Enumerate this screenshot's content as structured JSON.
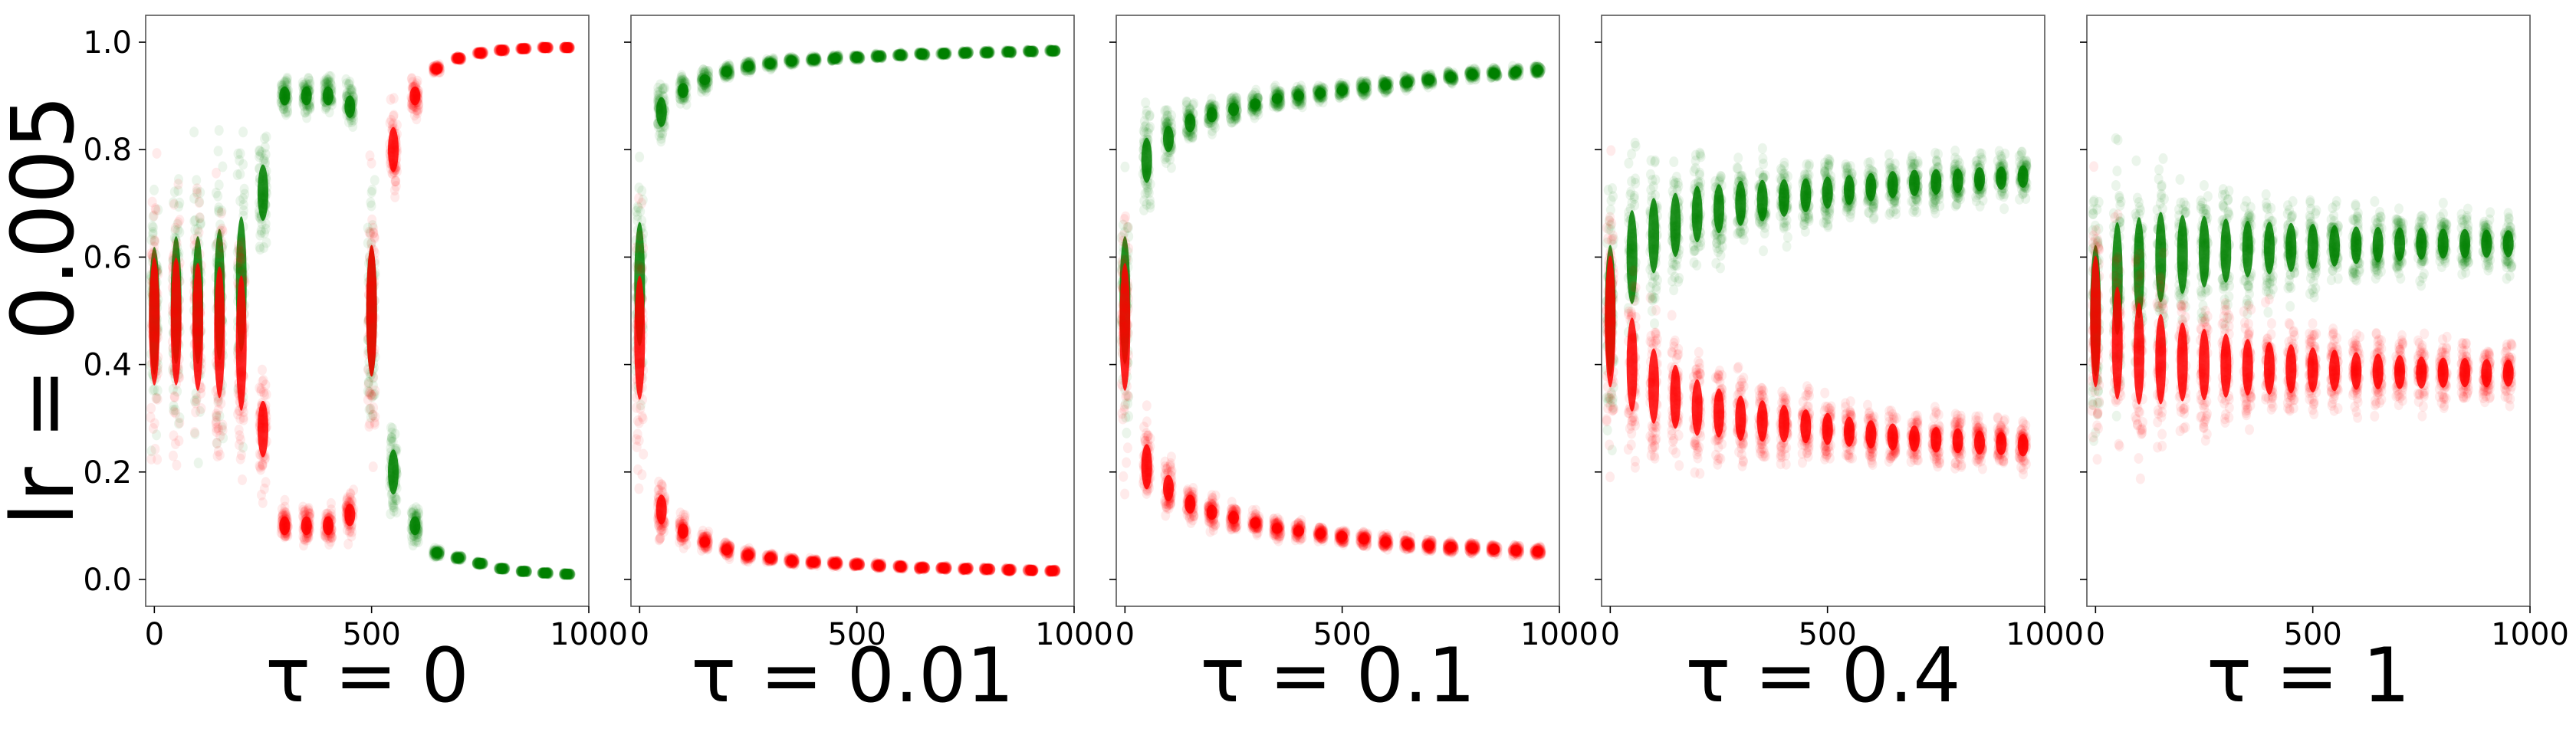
{
  "figure": {
    "ylabel": "lr = 0.005",
    "colors": {
      "high_mode": "#008000",
      "low_mode": "#ff0000"
    },
    "point_alpha": 0.08
  },
  "chart_data": [
    {
      "type": "scatter",
      "title": "",
      "xlabel": "τ = 0",
      "xlim": [
        -20,
        1000
      ],
      "ylim": [
        -0.05,
        1.05
      ],
      "xticks": [
        "0",
        "500",
        "1000"
      ],
      "yticks": [
        "0.0",
        "0.2",
        "0.4",
        "0.6",
        "0.8",
        "1.0"
      ],
      "series": [
        {
          "color": "green",
          "x": [
            0,
            50,
            100,
            150,
            200,
            250,
            300,
            350,
            400,
            450,
            500,
            550,
            600,
            650,
            700,
            750,
            800,
            850,
            900,
            950
          ],
          "y": [
            0.5,
            0.52,
            0.52,
            0.53,
            0.55,
            0.72,
            0.9,
            0.9,
            0.9,
            0.88,
            0.5,
            0.2,
            0.1,
            0.05,
            0.04,
            0.03,
            0.02,
            0.015,
            0.012,
            0.01
          ],
          "spread": [
            0.34,
            0.34,
            0.34,
            0.35,
            0.36,
            0.15,
            0.05,
            0.05,
            0.05,
            0.06,
            0.35,
            0.12,
            0.05,
            0.01,
            0.005,
            0.004,
            0.003,
            0.002,
            0.002,
            0.002
          ]
        },
        {
          "color": "red",
          "x": [
            0,
            50,
            100,
            150,
            200,
            250,
            300,
            350,
            400,
            450,
            500,
            550,
            600,
            650,
            700,
            750,
            800,
            850,
            900,
            950
          ],
          "y": [
            0.48,
            0.48,
            0.47,
            0.46,
            0.44,
            0.28,
            0.1,
            0.1,
            0.1,
            0.12,
            0.5,
            0.8,
            0.9,
            0.95,
            0.97,
            0.98,
            0.985,
            0.988,
            0.99,
            0.99
          ],
          "spread": [
            0.34,
            0.34,
            0.34,
            0.35,
            0.36,
            0.15,
            0.05,
            0.05,
            0.05,
            0.06,
            0.35,
            0.12,
            0.05,
            0.01,
            0.005,
            0.004,
            0.003,
            0.002,
            0.002,
            0.002
          ]
        }
      ]
    },
    {
      "type": "scatter",
      "title": "",
      "xlabel": "τ = 0.01",
      "xlim": [
        -20,
        1000
      ],
      "ylim": [
        -0.05,
        1.05
      ],
      "xticks": [
        "0",
        "500",
        "1000"
      ],
      "yticks": [],
      "series": [
        {
          "color": "green",
          "x": [
            0,
            50,
            100,
            150,
            200,
            250,
            300,
            350,
            400,
            450,
            500,
            550,
            600,
            650,
            700,
            750,
            800,
            850,
            900,
            950
          ],
          "y": [
            0.55,
            0.87,
            0.91,
            0.93,
            0.945,
            0.955,
            0.96,
            0.965,
            0.968,
            0.97,
            0.972,
            0.974,
            0.976,
            0.978,
            0.979,
            0.98,
            0.981,
            0.982,
            0.983,
            0.984
          ],
          "spread": [
            0.33,
            0.08,
            0.04,
            0.025,
            0.018,
            0.014,
            0.011,
            0.009,
            0.008,
            0.007,
            0.006,
            0.006,
            0.005,
            0.005,
            0.004,
            0.004,
            0.004,
            0.004,
            0.003,
            0.003
          ]
        },
        {
          "color": "red",
          "x": [
            0,
            50,
            100,
            150,
            200,
            250,
            300,
            350,
            400,
            450,
            500,
            550,
            600,
            650,
            700,
            750,
            800,
            850,
            900,
            950
          ],
          "y": [
            0.45,
            0.13,
            0.09,
            0.07,
            0.055,
            0.045,
            0.04,
            0.035,
            0.032,
            0.03,
            0.028,
            0.026,
            0.024,
            0.022,
            0.021,
            0.02,
            0.019,
            0.018,
            0.017,
            0.016
          ],
          "spread": [
            0.33,
            0.08,
            0.04,
            0.025,
            0.018,
            0.014,
            0.011,
            0.009,
            0.008,
            0.007,
            0.006,
            0.006,
            0.005,
            0.005,
            0.004,
            0.004,
            0.004,
            0.004,
            0.003,
            0.003
          ]
        }
      ]
    },
    {
      "type": "scatter",
      "title": "",
      "xlabel": "τ = 0.1",
      "xlim": [
        -20,
        1000
      ],
      "ylim": [
        -0.05,
        1.05
      ],
      "xticks": [
        "0",
        "500",
        "1000"
      ],
      "yticks": [],
      "series": [
        {
          "color": "green",
          "x": [
            0,
            50,
            100,
            150,
            200,
            250,
            300,
            350,
            400,
            450,
            500,
            550,
            600,
            650,
            700,
            750,
            800,
            850,
            900,
            950
          ],
          "y": [
            0.52,
            0.78,
            0.82,
            0.85,
            0.865,
            0.875,
            0.885,
            0.895,
            0.9,
            0.905,
            0.91,
            0.915,
            0.92,
            0.925,
            0.93,
            0.935,
            0.94,
            0.942,
            0.945,
            0.948
          ],
          "spread": [
            0.34,
            0.12,
            0.07,
            0.05,
            0.04,
            0.035,
            0.03,
            0.027,
            0.024,
            0.022,
            0.02,
            0.019,
            0.018,
            0.017,
            0.016,
            0.015,
            0.014,
            0.013,
            0.012,
            0.012
          ]
        },
        {
          "color": "red",
          "x": [
            0,
            50,
            100,
            150,
            200,
            250,
            300,
            350,
            400,
            450,
            500,
            550,
            600,
            650,
            700,
            750,
            800,
            850,
            900,
            950
          ],
          "y": [
            0.47,
            0.21,
            0.17,
            0.14,
            0.125,
            0.115,
            0.105,
            0.095,
            0.09,
            0.085,
            0.08,
            0.075,
            0.07,
            0.066,
            0.063,
            0.06,
            0.058,
            0.056,
            0.054,
            0.052
          ],
          "spread": [
            0.34,
            0.12,
            0.07,
            0.05,
            0.04,
            0.035,
            0.03,
            0.027,
            0.024,
            0.022,
            0.02,
            0.019,
            0.018,
            0.017,
            0.016,
            0.015,
            0.014,
            0.013,
            0.012,
            0.012
          ]
        }
      ]
    },
    {
      "type": "scatter",
      "title": "",
      "xlabel": "τ = 0.4",
      "xlim": [
        -20,
        1000
      ],
      "ylim": [
        -0.05,
        1.05
      ],
      "xticks": [
        "0",
        "500",
        "1000"
      ],
      "yticks": [],
      "series": [
        {
          "color": "green",
          "x": [
            0,
            50,
            100,
            150,
            200,
            250,
            300,
            350,
            400,
            450,
            500,
            550,
            600,
            650,
            700,
            750,
            800,
            850,
            900,
            950
          ],
          "y": [
            0.5,
            0.6,
            0.64,
            0.66,
            0.68,
            0.69,
            0.7,
            0.705,
            0.71,
            0.715,
            0.72,
            0.725,
            0.73,
            0.735,
            0.738,
            0.74,
            0.742,
            0.745,
            0.747,
            0.75
          ],
          "spread": [
            0.35,
            0.25,
            0.2,
            0.17,
            0.15,
            0.13,
            0.12,
            0.11,
            0.1,
            0.09,
            0.085,
            0.08,
            0.075,
            0.072,
            0.07,
            0.068,
            0.066,
            0.064,
            0.062,
            0.06
          ]
        },
        {
          "color": "red",
          "x": [
            0,
            50,
            100,
            150,
            200,
            250,
            300,
            350,
            400,
            450,
            500,
            550,
            600,
            650,
            700,
            750,
            800,
            850,
            900,
            950
          ],
          "y": [
            0.48,
            0.4,
            0.36,
            0.34,
            0.32,
            0.31,
            0.3,
            0.295,
            0.29,
            0.285,
            0.28,
            0.275,
            0.27,
            0.265,
            0.262,
            0.26,
            0.258,
            0.255,
            0.253,
            0.25
          ],
          "spread": [
            0.35,
            0.25,
            0.2,
            0.17,
            0.15,
            0.13,
            0.12,
            0.11,
            0.1,
            0.09,
            0.085,
            0.08,
            0.075,
            0.072,
            0.07,
            0.068,
            0.066,
            0.064,
            0.062,
            0.06
          ]
        }
      ]
    },
    {
      "type": "scatter",
      "title": "",
      "xlabel": "τ = 1",
      "xlim": [
        -20,
        1000
      ],
      "ylim": [
        -0.05,
        1.05
      ],
      "xticks": [
        "0",
        "500",
        "1000"
      ],
      "yticks": [],
      "series": [
        {
          "color": "green",
          "x": [
            0,
            50,
            100,
            150,
            200,
            250,
            300,
            350,
            400,
            450,
            500,
            550,
            600,
            650,
            700,
            750,
            800,
            850,
            900,
            950
          ],
          "y": [
            0.5,
            0.56,
            0.58,
            0.6,
            0.605,
            0.61,
            0.612,
            0.615,
            0.617,
            0.618,
            0.62,
            0.621,
            0.622,
            0.623,
            0.624,
            0.625,
            0.625,
            0.625,
            0.625,
            0.625
          ],
          "spread": [
            0.35,
            0.3,
            0.27,
            0.24,
            0.21,
            0.19,
            0.17,
            0.15,
            0.14,
            0.13,
            0.12,
            0.11,
            0.1,
            0.095,
            0.09,
            0.085,
            0.08,
            0.078,
            0.075,
            0.072
          ]
        },
        {
          "color": "red",
          "x": [
            0,
            50,
            100,
            150,
            200,
            250,
            300,
            350,
            400,
            450,
            500,
            550,
            600,
            650,
            700,
            750,
            800,
            850,
            900,
            950
          ],
          "y": [
            0.48,
            0.44,
            0.42,
            0.41,
            0.405,
            0.4,
            0.398,
            0.395,
            0.393,
            0.392,
            0.39,
            0.389,
            0.388,
            0.387,
            0.386,
            0.385,
            0.385,
            0.385,
            0.384,
            0.384
          ],
          "spread": [
            0.35,
            0.3,
            0.27,
            0.24,
            0.21,
            0.19,
            0.17,
            0.15,
            0.14,
            0.13,
            0.12,
            0.11,
            0.1,
            0.095,
            0.09,
            0.085,
            0.08,
            0.078,
            0.075,
            0.072
          ]
        }
      ]
    }
  ]
}
